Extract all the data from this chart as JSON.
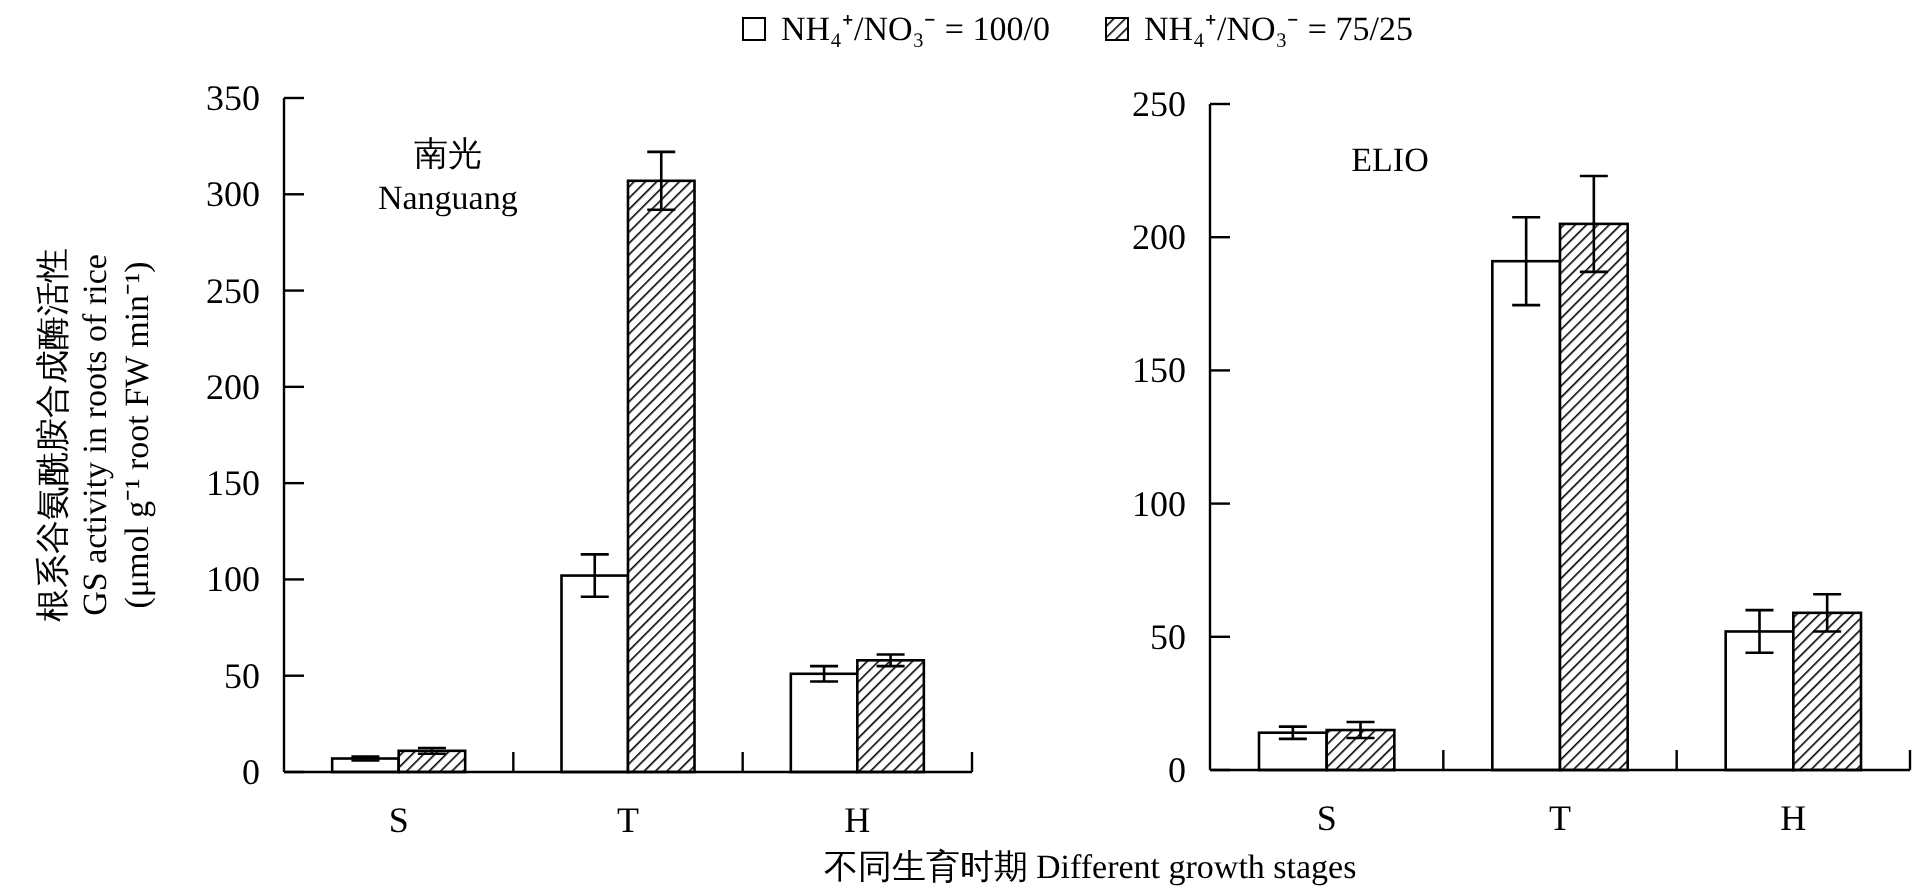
{
  "chart_data": [
    {
      "type": "bar",
      "categories": [
        "S",
        "T",
        "H"
      ],
      "ylim": [
        0,
        350
      ],
      "yticks": [
        0,
        50,
        100,
        150,
        200,
        250,
        300,
        350
      ],
      "ylabel": "根系谷氨酰胺合成酶活性\nGS activity in roots of rice\n(μmol g⁻¹ root FW min⁻¹)",
      "xlabel": "不同生育时期  Different growth stages",
      "legend": "top",
      "annotations": [
        "南光\nNanguang"
      ],
      "grid": false,
      "series": [
        {
          "name": "NH₄⁺/NO₃⁻ = 100/0",
          "color": "#ffffff",
          "values": [
            7,
            102,
            51
          ],
          "errors": [
            1,
            11,
            4
          ]
        },
        {
          "name": "NH₄⁺/NO₃⁻ = 75/25",
          "color": "#000000",
          "values": [
            11,
            307,
            58
          ],
          "errors": [
            1.5,
            15,
            3
          ]
        }
      ]
    },
    {
      "type": "bar",
      "categories": [
        "S",
        "T",
        "H"
      ],
      "ylim": [
        0,
        250
      ],
      "yticks": [
        0,
        50,
        100,
        150,
        200,
        250
      ],
      "annotations": [
        "ELIO"
      ],
      "grid": false,
      "series": [
        {
          "color": "#ffffff",
          "values": [
            14,
            191,
            52
          ],
          "errors": [
            2.3,
            16.5,
            8
          ]
        },
        {
          "color": "#000000",
          "values": [
            15,
            205,
            59
          ],
          "errors": [
            3,
            18,
            7
          ]
        }
      ]
    }
  ]
}
